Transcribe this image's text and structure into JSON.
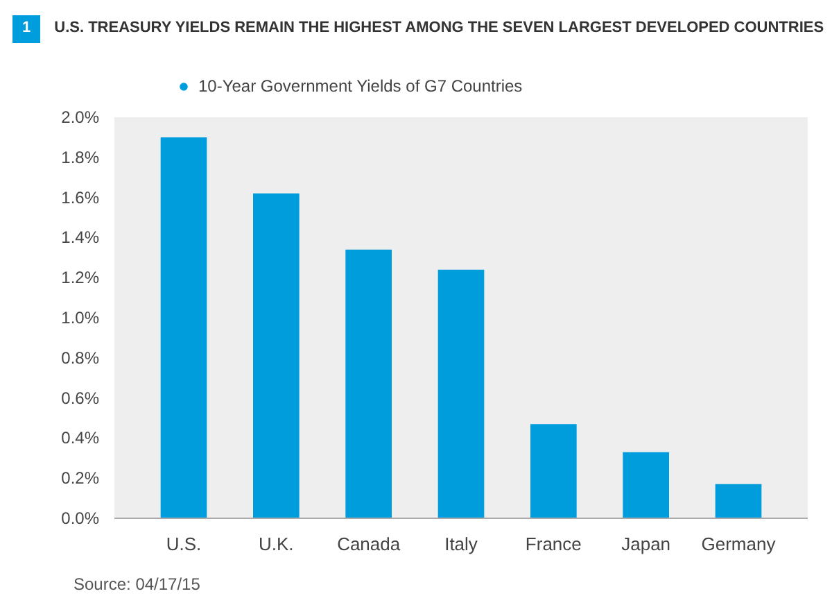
{
  "chart_data": {
    "type": "bar",
    "title": "U.S. TREASURY YIELDS REMAIN THE HIGHEST AMONG THE SEVEN LARGEST DEVELOPED COUNTRIES",
    "categories": [
      "U.S.",
      "U.K.",
      "Canada",
      "Italy",
      "France",
      "Japan",
      "Germany"
    ],
    "series": [
      {
        "name": "10-Year Government Yields of G7 Countries",
        "color": "#009ddc",
        "values": [
          1.9,
          1.62,
          1.34,
          1.24,
          0.47,
          0.33,
          0.17
        ]
      }
    ],
    "ylim": [
      0,
      2.0
    ],
    "yticks": [
      {
        "value": 0,
        "label": "0.0%"
      },
      {
        "value": 0.2,
        "label": "0.2%"
      },
      {
        "value": 0.4,
        "label": "0.4%"
      },
      {
        "value": 0.6,
        "label": "0.6%"
      },
      {
        "value": 0.8,
        "label": "0.8%"
      },
      {
        "value": 1.0,
        "label": "1.0%"
      },
      {
        "value": 1.2,
        "label": "1.2%"
      },
      {
        "value": 1.4,
        "label": "1.4%"
      },
      {
        "value": 1.6,
        "label": "1.6%"
      },
      {
        "value": 1.8,
        "label": "1.8%"
      },
      {
        "value": 2.0,
        "label": "2.0%"
      }
    ],
    "grid": false,
    "legend": "top left",
    "annotations": [
      "1",
      "Source: 04/17/15"
    ]
  }
}
